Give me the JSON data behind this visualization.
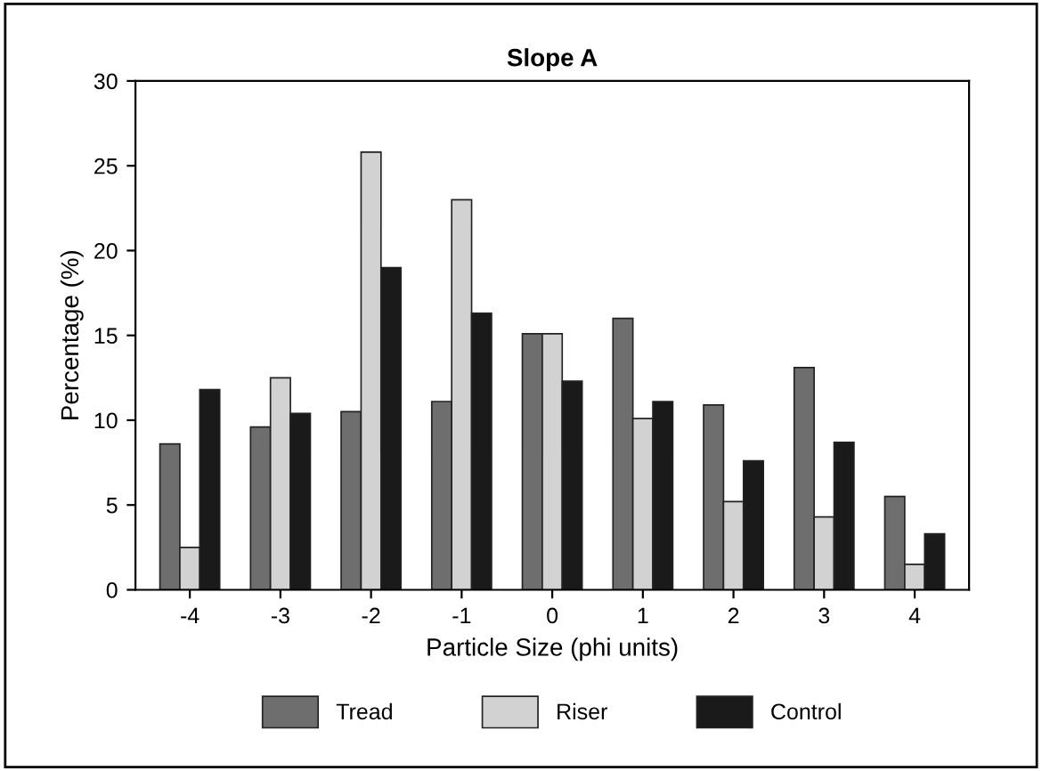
{
  "chart_data": {
    "type": "bar",
    "title": "Slope A",
    "xlabel": "Particle Size (phi units)",
    "ylabel": "Percentage (%)",
    "categories": [
      "-4",
      "-3",
      "-2",
      "-1",
      "0",
      "1",
      "2",
      "3",
      "4"
    ],
    "series": [
      {
        "name": "Tread",
        "color": "#6e6e6e",
        "values": [
          8.6,
          9.6,
          10.5,
          11.1,
          15.1,
          16.0,
          10.9,
          13.1,
          5.5
        ]
      },
      {
        "name": "Riser",
        "color": "#d2d2d2",
        "values": [
          2.5,
          12.5,
          25.8,
          23.0,
          15.1,
          10.1,
          5.2,
          4.3,
          1.5
        ]
      },
      {
        "name": "Control",
        "color": "#1a1a1a",
        "values": [
          11.8,
          10.4,
          19.0,
          16.3,
          12.3,
          11.1,
          7.6,
          8.7,
          3.3
        ]
      }
    ],
    "ylim": [
      0,
      30
    ],
    "yticks": [
      0,
      5,
      10,
      15,
      20,
      25,
      30
    ],
    "grid": false,
    "legend": "bottom"
  }
}
